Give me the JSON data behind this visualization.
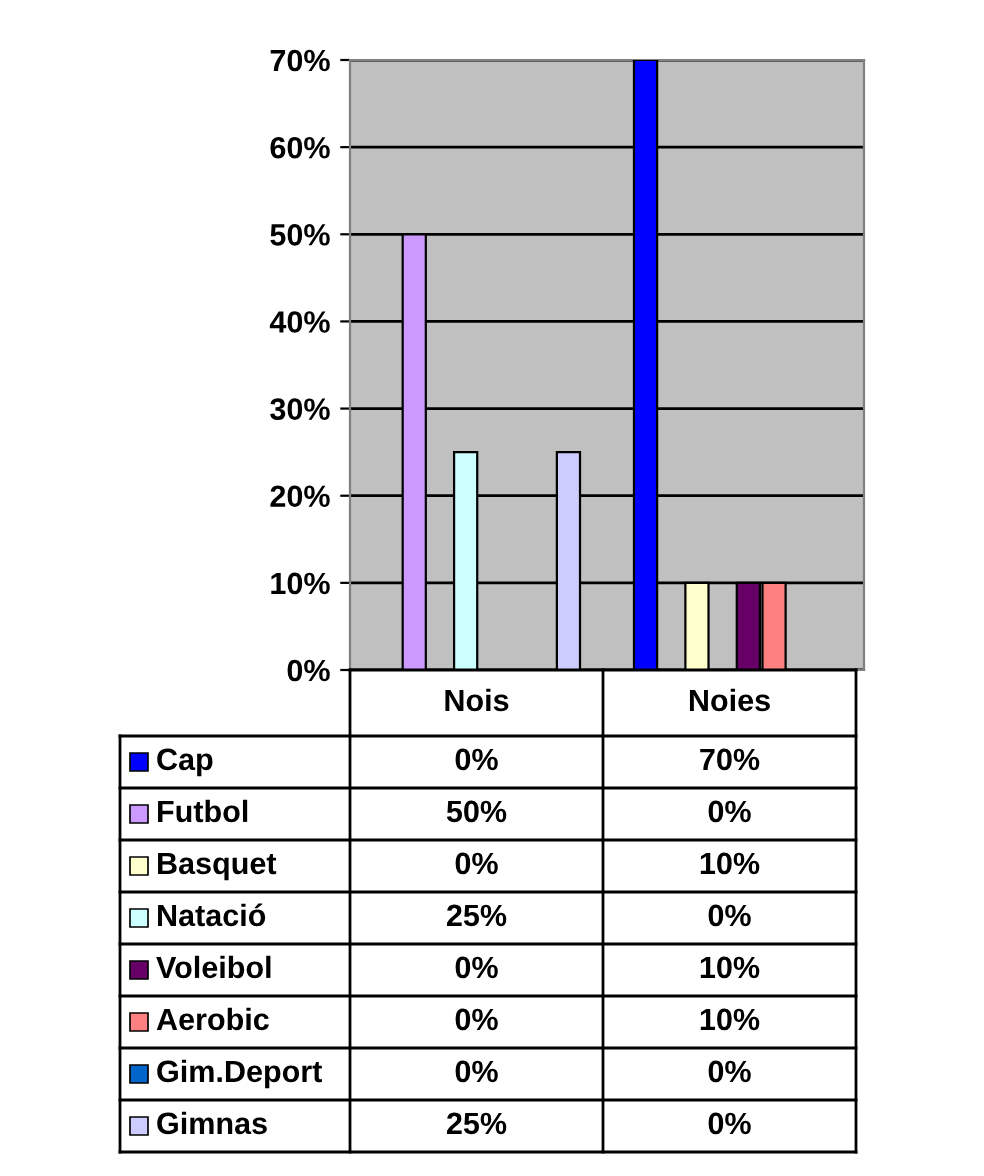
{
  "chart_data": {
    "type": "bar",
    "categories": [
      "Nois",
      "Noies"
    ],
    "series": [
      {
        "name": "Cap",
        "color": "#0000ff",
        "values": [
          0,
          70
        ],
        "value_labels": [
          "0%",
          "70%"
        ]
      },
      {
        "name": "Futbol",
        "color": "#cc99ff",
        "values": [
          50,
          0
        ],
        "value_labels": [
          "50%",
          "0%"
        ]
      },
      {
        "name": "Basquet",
        "color": "#ffffcc",
        "values": [
          0,
          10
        ],
        "value_labels": [
          "0%",
          "10%"
        ]
      },
      {
        "name": "Natació",
        "color": "#ccffff",
        "values": [
          25,
          0
        ],
        "value_labels": [
          "25%",
          "0%"
        ]
      },
      {
        "name": "Voleibol",
        "color": "#660066",
        "values": [
          0,
          10
        ],
        "value_labels": [
          "0%",
          "10%"
        ]
      },
      {
        "name": "Aerobic",
        "color": "#ff8080",
        "values": [
          0,
          10
        ],
        "value_labels": [
          "0%",
          "10%"
        ]
      },
      {
        "name": "Gim.Deport",
        "color": "#0066cc",
        "values": [
          0,
          0
        ],
        "value_labels": [
          "0%",
          "0%"
        ]
      },
      {
        "name": "Gimnas",
        "color": "#ccccff",
        "values": [
          25,
          0
        ],
        "value_labels": [
          "25%",
          "0%"
        ]
      }
    ],
    "ylim": [
      0,
      70
    ],
    "yticks": [
      {
        "value": 0,
        "label": "0%"
      },
      {
        "value": 10,
        "label": "10%"
      },
      {
        "value": 20,
        "label": "20%"
      },
      {
        "value": 30,
        "label": "30%"
      },
      {
        "value": 40,
        "label": "40%"
      },
      {
        "value": 50,
        "label": "50%"
      },
      {
        "value": 60,
        "label": "60%"
      },
      {
        "value": 70,
        "label": "70%"
      }
    ],
    "grid": "y",
    "legend": "bottom"
  }
}
